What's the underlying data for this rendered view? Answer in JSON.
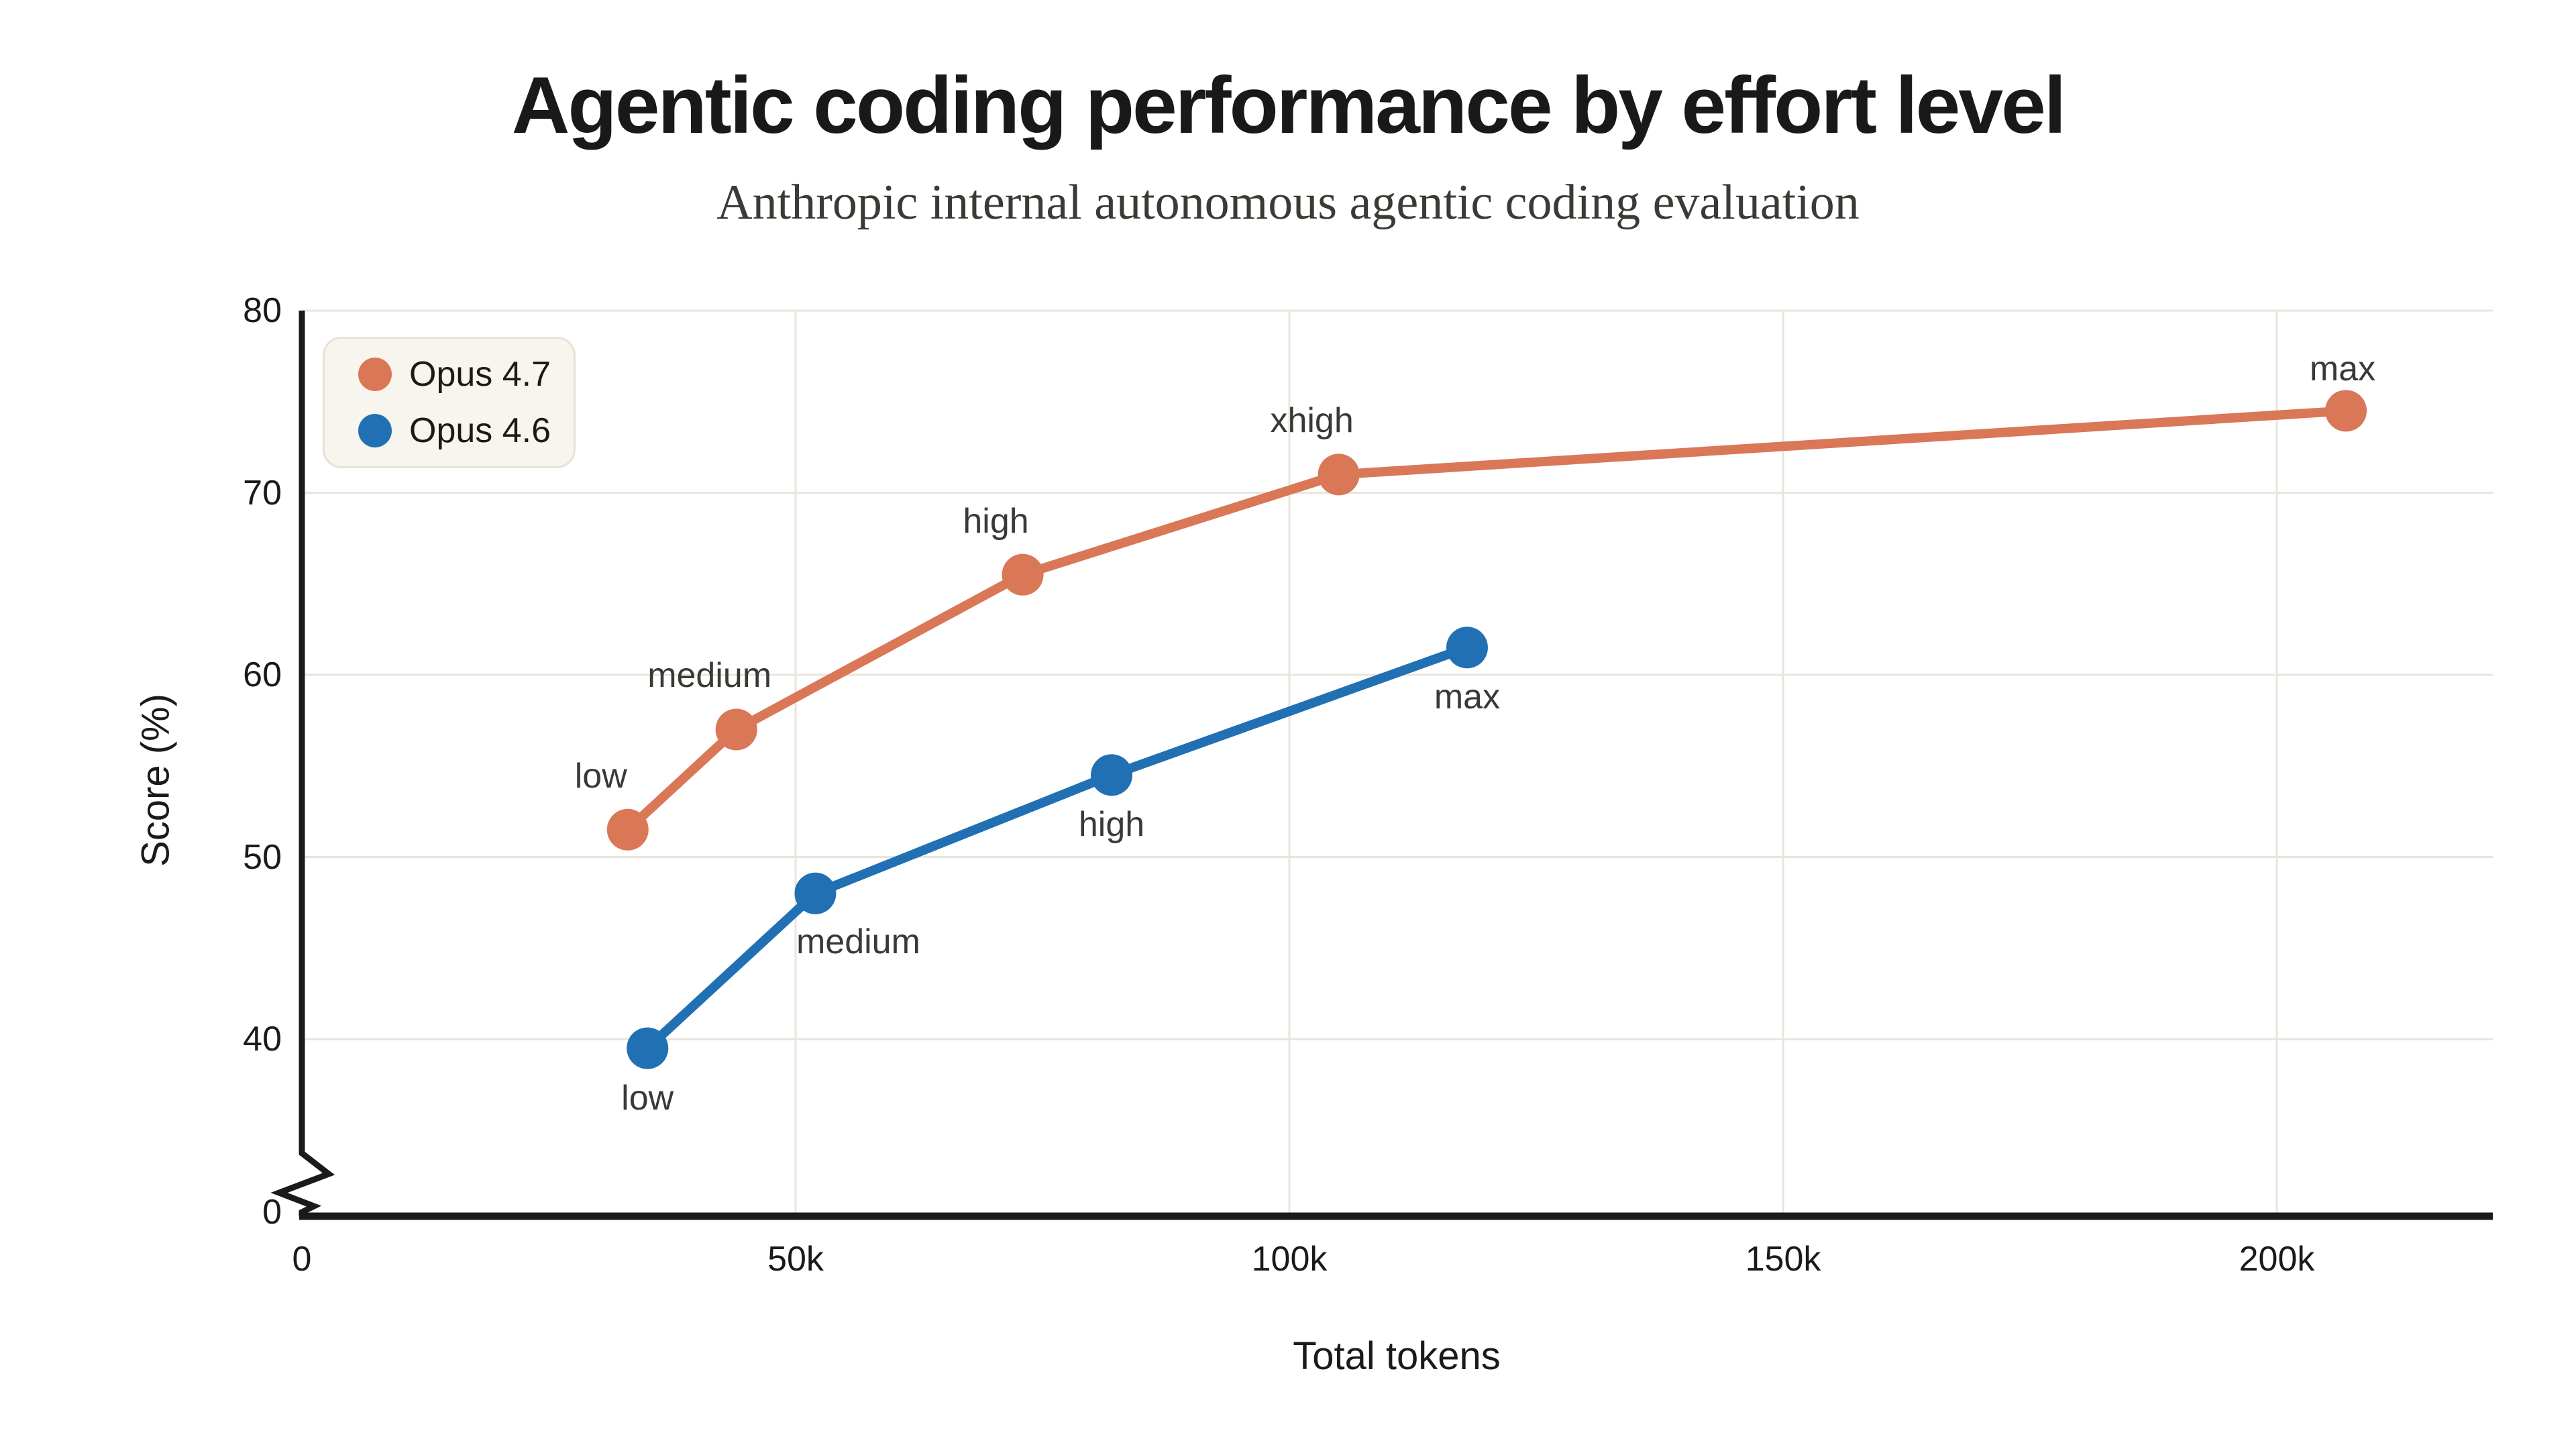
{
  "colors": {
    "background": "#FFFFFF",
    "title": "#1A1918",
    "subtitle": "#3B3A35",
    "axis": "#1A1A18",
    "grid": "#E8E5DC",
    "tick_label": "#1B1A18",
    "point_label": "#3A3936",
    "legend_background": "#F7F5EE",
    "legend_border": "#E5E2D7",
    "opus_4_7": "#D97757",
    "opus_4_6": "#2170B3"
  },
  "chart_data": {
    "type": "line",
    "title": "Agentic coding performance by effort level",
    "subtitle": "Anthropic internal autonomous agentic coding evaluation",
    "xlabel": "Total tokens",
    "ylabel": "Score (%)",
    "xlim_tokens": [
      0,
      222000
    ],
    "ylim": [
      0,
      80
    ],
    "y_axis_break": {
      "between": [
        0,
        40
      ]
    },
    "grid": true,
    "legend_position": "top-left",
    "x_ticks": [
      {
        "value": 0,
        "label": "0"
      },
      {
        "value": 50000,
        "label": "50k"
      },
      {
        "value": 100000,
        "label": "100k"
      },
      {
        "value": 150000,
        "label": "150k"
      },
      {
        "value": 200000,
        "label": "200k"
      }
    ],
    "y_ticks": [
      {
        "value": 0,
        "label": "0"
      },
      {
        "value": 40,
        "label": "40"
      },
      {
        "value": 50,
        "label": "50"
      },
      {
        "value": 60,
        "label": "60"
      },
      {
        "value": 70,
        "label": "70"
      },
      {
        "value": 80,
        "label": "80"
      }
    ],
    "series": [
      {
        "name": "Opus 4.7",
        "color": "#D97757",
        "points": [
          {
            "effort": "low",
            "tokens": 33000,
            "score": 51.5,
            "label_side": "above-left"
          },
          {
            "effort": "medium",
            "tokens": 44000,
            "score": 57,
            "label_side": "above-left"
          },
          {
            "effort": "high",
            "tokens": 73000,
            "score": 65.5,
            "label_side": "above-left"
          },
          {
            "effort": "xhigh",
            "tokens": 105000,
            "score": 71,
            "label_side": "above-left"
          },
          {
            "effort": "max",
            "tokens": 207000,
            "score": 74.5,
            "label_side": "above"
          }
        ]
      },
      {
        "name": "Opus 4.6",
        "color": "#2170B3",
        "points": [
          {
            "effort": "low",
            "tokens": 35000,
            "score": 39.5,
            "label_side": "below"
          },
          {
            "effort": "medium",
            "tokens": 52000,
            "score": 48,
            "label_side": "below-right"
          },
          {
            "effort": "high",
            "tokens": 82000,
            "score": 54.5,
            "label_side": "below"
          },
          {
            "effort": "max",
            "tokens": 118000,
            "score": 61.5,
            "label_side": "below"
          }
        ]
      }
    ]
  }
}
